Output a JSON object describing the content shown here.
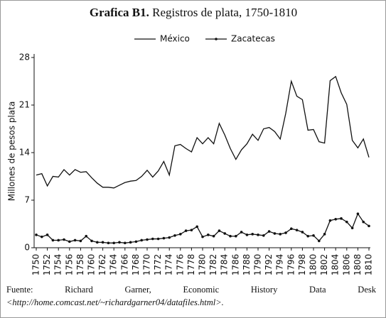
{
  "chart_data": {
    "type": "line",
    "title_bold": "Grafica B1.",
    "title": "Registros de plata, 1750-1810",
    "ylabel": "Millones de pesos plata",
    "source": "Fuente: Richard Garner, Economic History Data Desk",
    "source_url": "<http://home.comcast.net/~richardgarner04/datafiles.html>.",
    "x": [
      1750,
      1751,
      1752,
      1753,
      1754,
      1755,
      1756,
      1757,
      1758,
      1759,
      1760,
      1761,
      1762,
      1763,
      1764,
      1765,
      1766,
      1767,
      1768,
      1769,
      1770,
      1771,
      1772,
      1773,
      1774,
      1775,
      1776,
      1777,
      1778,
      1779,
      1780,
      1781,
      1782,
      1783,
      1784,
      1785,
      1786,
      1787,
      1788,
      1789,
      1790,
      1791,
      1792,
      1793,
      1794,
      1795,
      1796,
      1797,
      1798,
      1799,
      1800,
      1801,
      1802,
      1803,
      1804,
      1805,
      1806,
      1807,
      1808,
      1809,
      1810
    ],
    "series": [
      {
        "name": "México",
        "color": "#111111",
        "marker": false,
        "values": [
          10.7,
          10.9,
          9.1,
          10.5,
          10.4,
          11.5,
          10.7,
          11.5,
          11.1,
          11.2,
          10.3,
          9.5,
          8.9,
          8.9,
          8.8,
          9.2,
          9.6,
          9.8,
          9.9,
          10.5,
          11.4,
          10.4,
          11.3,
          12.7,
          10.7,
          15.0,
          15.2,
          14.6,
          14.1,
          16.2,
          15.3,
          16.2,
          15.3,
          18.3,
          16.6,
          14.6,
          13.0,
          14.4,
          15.3,
          16.7,
          15.8,
          17.5,
          17.7,
          17.1,
          16.0,
          19.8,
          24.5,
          22.3,
          21.8,
          17.3,
          17.4,
          15.6,
          15.4,
          24.6,
          25.2,
          22.8,
          21.1,
          15.8,
          14.7,
          16.0,
          13.3
        ]
      },
      {
        "name": "Zacatecas",
        "color": "#111111",
        "marker": true,
        "values": [
          1.9,
          1.6,
          1.9,
          1.1,
          1.1,
          1.2,
          0.9,
          1.1,
          1.0,
          1.7,
          1.0,
          0.8,
          0.8,
          0.7,
          0.7,
          0.8,
          0.7,
          0.8,
          0.9,
          1.1,
          1.2,
          1.3,
          1.3,
          1.4,
          1.5,
          1.8,
          2.0,
          2.5,
          2.6,
          3.1,
          1.6,
          1.9,
          1.7,
          2.5,
          2.1,
          1.7,
          1.7,
          2.3,
          1.9,
          2.0,
          1.9,
          1.8,
          2.4,
          2.1,
          2.0,
          2.2,
          2.8,
          2.6,
          2.3,
          1.7,
          1.8,
          1.0,
          2.0,
          4.0,
          4.2,
          4.3,
          3.8,
          2.9,
          5.0,
          3.8,
          3.2
        ]
      }
    ],
    "xlim": [
      1750,
      1810
    ],
    "xticks": [
      1750,
      1752,
      1754,
      1756,
      1758,
      1760,
      1762,
      1764,
      1766,
      1768,
      1770,
      1772,
      1774,
      1776,
      1778,
      1780,
      1782,
      1784,
      1786,
      1788,
      1790,
      1792,
      1794,
      1796,
      1798,
      1800,
      1802,
      1804,
      1806,
      1808,
      1810
    ],
    "ylim": [
      0,
      28
    ],
    "yticks": [
      0,
      7,
      14,
      21,
      28
    ],
    "grid": false,
    "legend": "top"
  }
}
